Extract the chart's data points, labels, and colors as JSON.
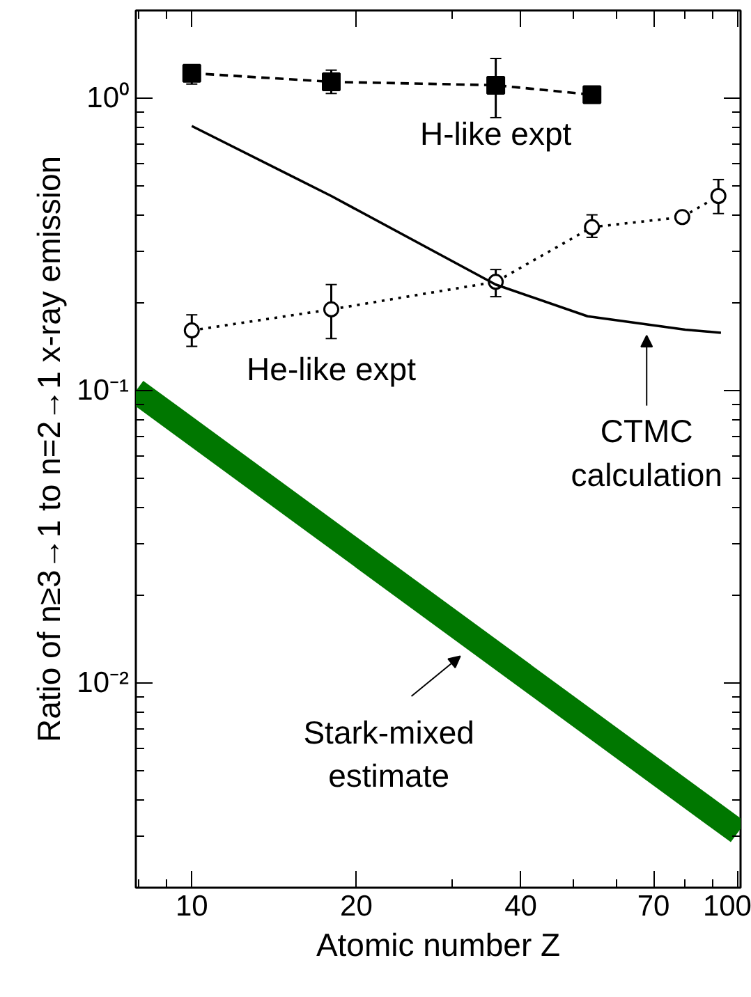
{
  "chart_data": {
    "type": "line",
    "xlabel": "Atomic number Z",
    "ylabel": "Ratio of n≥3→1 to n=2→1 x-ray emission",
    "log": "xy",
    "xlim": [
      7.9,
      101
    ],
    "ylim": [
      0.002,
      2.0
    ],
    "xticks": [
      10,
      20,
      40,
      70,
      100
    ],
    "yticks": [
      {
        "value": 1,
        "label": "10⁰"
      },
      {
        "value": 0.1,
        "label": "10⁻¹"
      },
      {
        "value": 0.01,
        "label": "10⁻²"
      }
    ],
    "grid": false,
    "annotations": [
      {
        "text": "Stark-mixed estimate",
        "x": 31,
        "y": 0.0151
      },
      {
        "text": "CTMC calculation",
        "x": 68,
        "y": 0.168
      }
    ],
    "series": [
      {
        "name": "H-like expt",
        "color": "#000000",
        "marker": "square",
        "line_style": "dashed",
        "x": [
          10,
          18,
          36,
          54
        ],
        "values": [
          1.22,
          1.14,
          1.11,
          1.03
        ],
        "errors": [
          [
            1.12,
            1.3
          ],
          [
            1.04,
            1.25
          ],
          [
            0.86,
            1.37
          ],
          null
        ]
      },
      {
        "name": "He-like expt",
        "color": "#000000",
        "marker": "circle",
        "line_style": "dotted",
        "x": [
          10,
          18,
          36,
          54,
          79,
          92
        ],
        "values": [
          0.161,
          0.19,
          0.236,
          0.363,
          0.393,
          0.464
        ],
        "errors": [
          [
            0.142,
            0.182
          ],
          [
            0.151,
            0.231
          ],
          [
            0.21,
            0.26
          ],
          [
            0.335,
            0.4
          ],
          null,
          [
            0.404,
            0.528
          ]
        ]
      },
      {
        "color": "#000000",
        "marker": "none",
        "line_style": "solid",
        "x": [
          10,
          18,
          36,
          53,
          80,
          93
        ],
        "values": [
          0.805,
          0.464,
          0.231,
          0.18,
          0.162,
          0.158
        ]
      },
      {
        "color": "#007700",
        "marker": "none",
        "line_style": "solid",
        "x": [
          7.9,
          100
        ],
        "values": [
          0.1,
          0.0031
        ]
      }
    ]
  }
}
